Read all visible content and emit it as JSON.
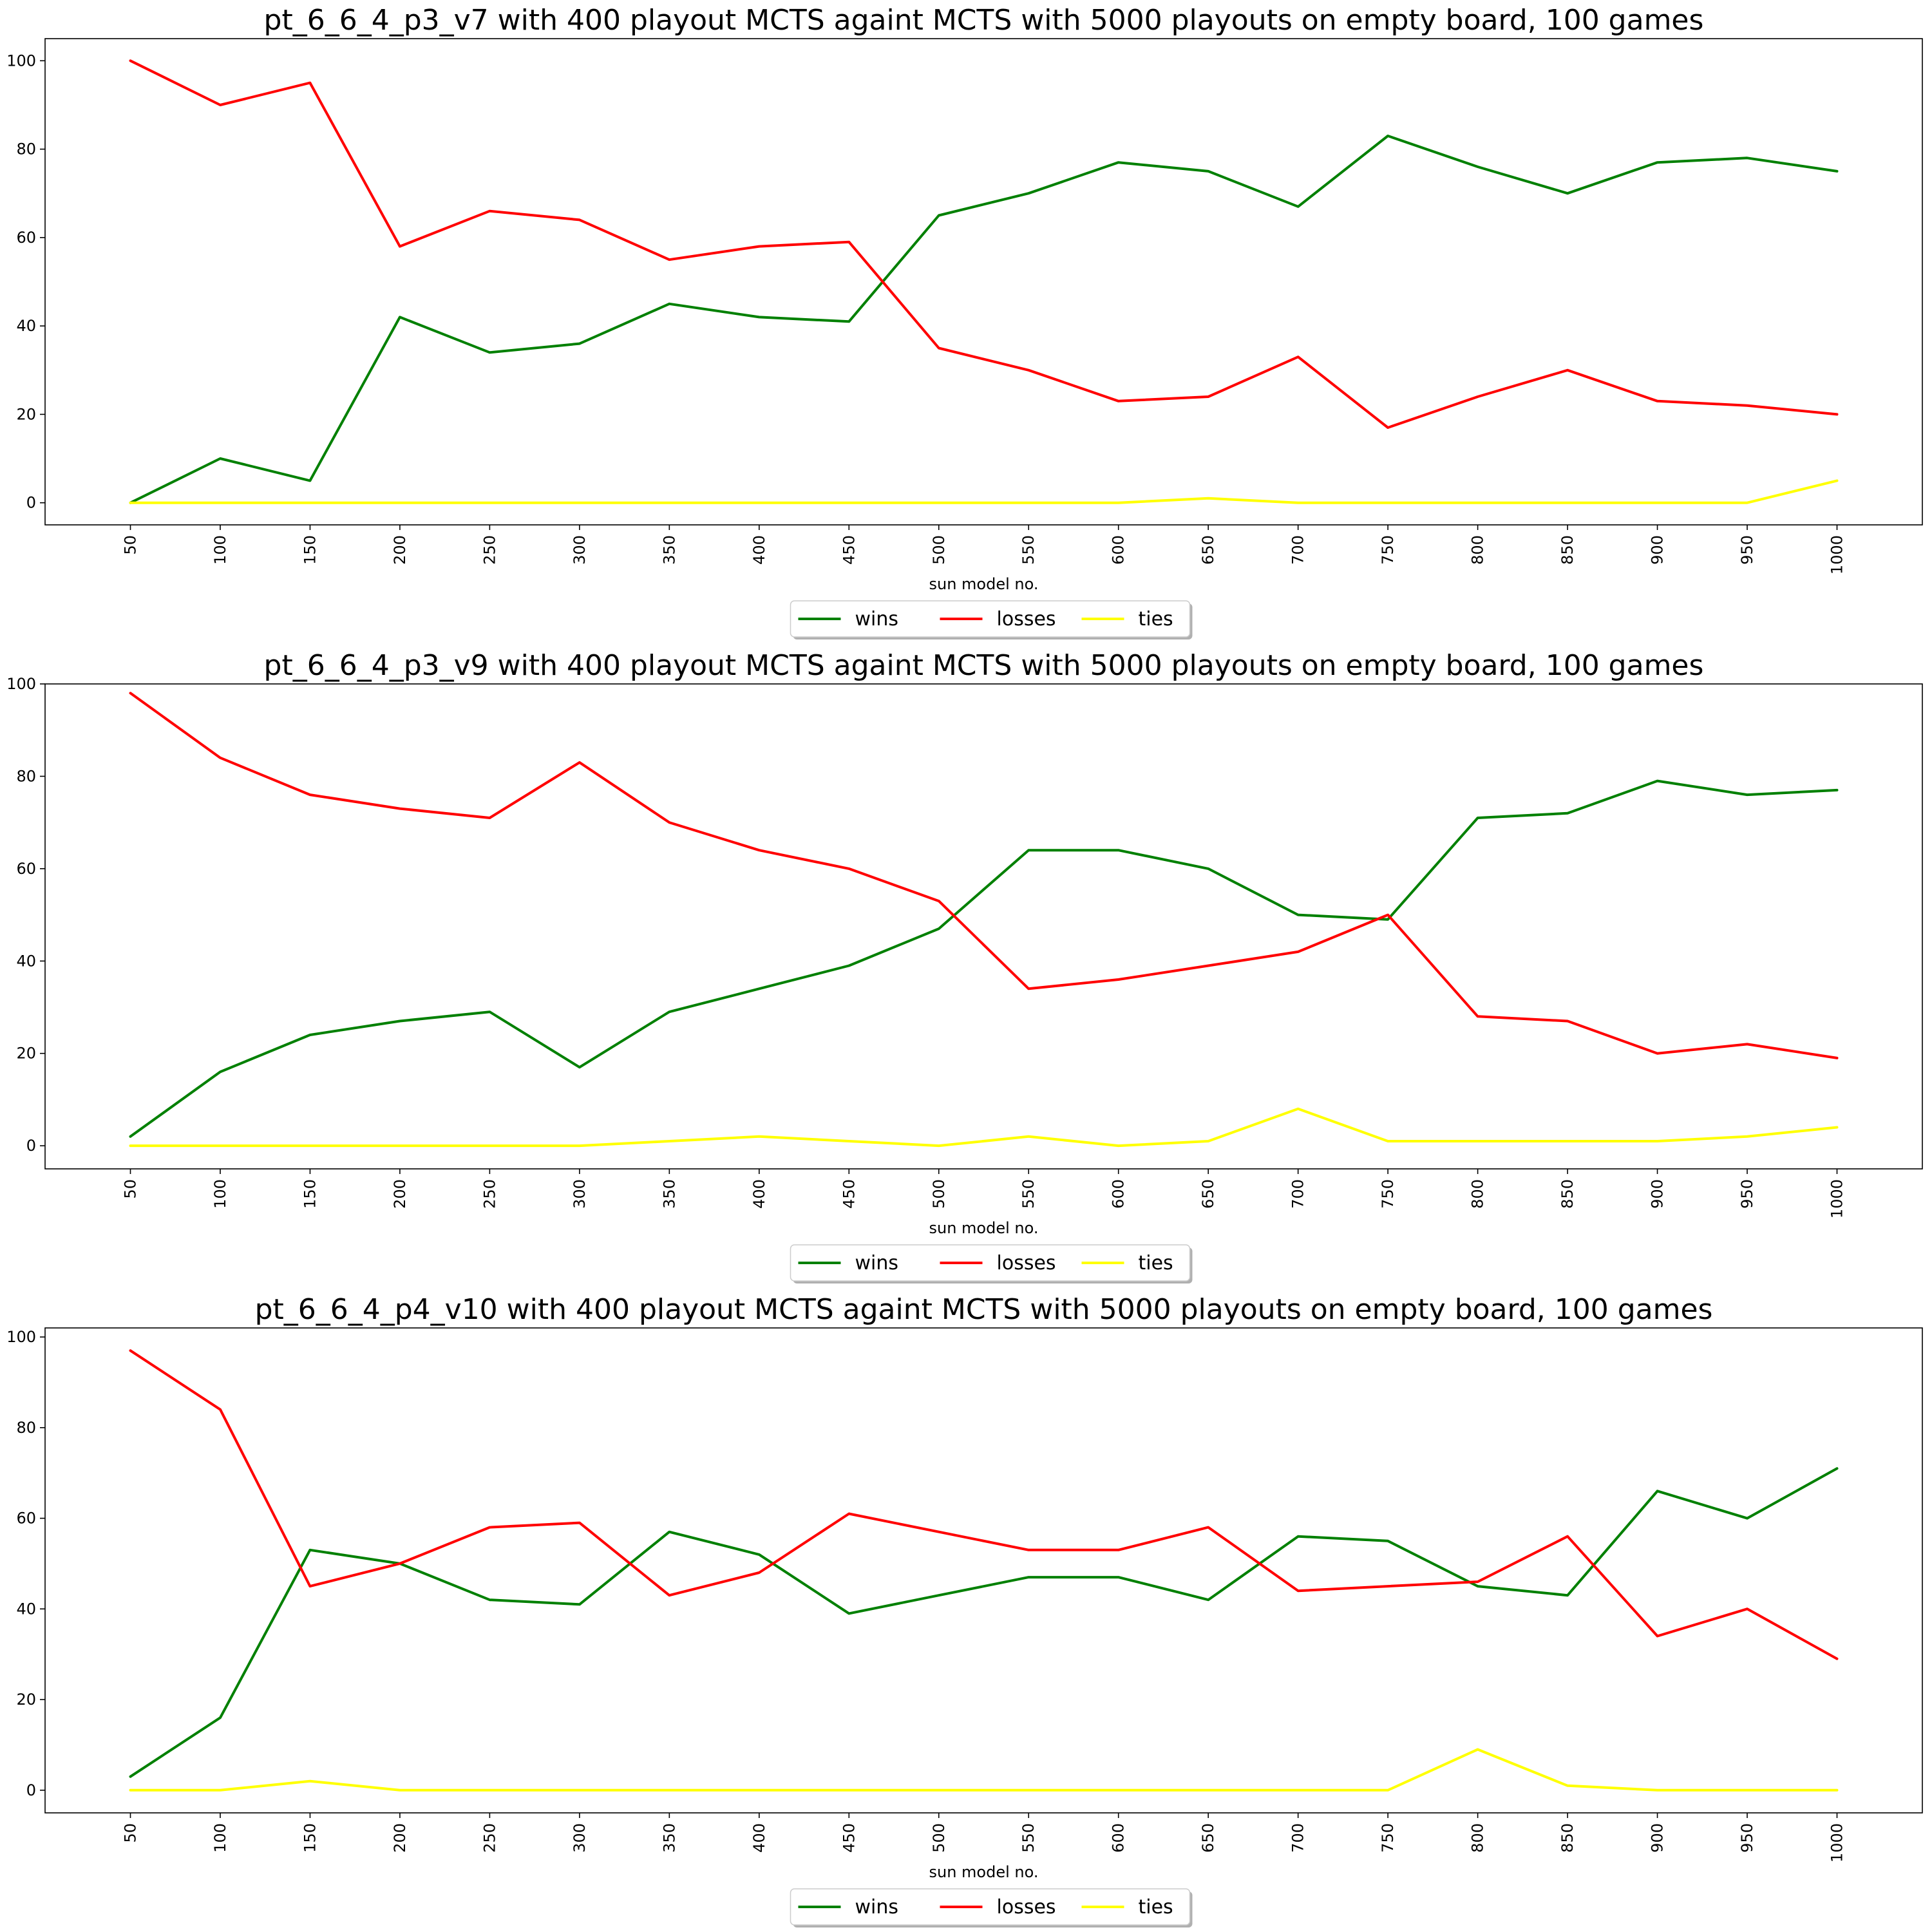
{
  "chart_data": [
    {
      "type": "line",
      "title": "pt_6_6_4_p3_v7 with 400 playout MCTS againt MCTS with 5000 playouts on empty board, 100 games",
      "xlabel": "sun model no.",
      "ylabel": "",
      "x": [
        50,
        100,
        150,
        200,
        250,
        300,
        350,
        400,
        450,
        500,
        550,
        600,
        650,
        700,
        750,
        800,
        850,
        900,
        950,
        1000
      ],
      "ylim": [
        -5,
        105
      ],
      "yticks": [
        0,
        20,
        40,
        60,
        80,
        100
      ],
      "grid": false,
      "legend_placement": "bottom-center",
      "series": [
        {
          "name": "wins",
          "color": "#008000",
          "values": [
            0,
            10,
            5,
            42,
            34,
            36,
            45,
            42,
            41,
            65,
            70,
            77,
            75,
            67,
            83,
            76,
            70,
            77,
            78,
            75
          ]
        },
        {
          "name": "losses",
          "color": "#ff0000",
          "values": [
            100,
            90,
            95,
            58,
            66,
            64,
            55,
            58,
            59,
            35,
            30,
            23,
            24,
            33,
            17,
            24,
            30,
            23,
            22,
            20
          ]
        },
        {
          "name": "ties",
          "color": "#ffff00",
          "values": [
            0,
            0,
            0,
            0,
            0,
            0,
            0,
            0,
            0,
            0,
            0,
            0,
            1,
            0,
            0,
            0,
            0,
            0,
            0,
            5
          ]
        }
      ]
    },
    {
      "type": "line",
      "title": "pt_6_6_4_p3_v9 with 400 playout MCTS againt MCTS with 5000 playouts on empty board, 100 games",
      "xlabel": "sun model no.",
      "ylabel": "",
      "x": [
        50,
        100,
        150,
        200,
        250,
        300,
        350,
        400,
        450,
        500,
        550,
        600,
        650,
        700,
        750,
        800,
        850,
        900,
        950,
        1000
      ],
      "ylim": [
        -5,
        100
      ],
      "yticks": [
        0,
        20,
        40,
        60,
        80,
        100
      ],
      "grid": false,
      "legend_placement": "bottom-center",
      "series": [
        {
          "name": "wins",
          "color": "#008000",
          "values": [
            2,
            16,
            24,
            27,
            29,
            17,
            29,
            34,
            39,
            47,
            64,
            64,
            60,
            50,
            49,
            71,
            72,
            79,
            76,
            77
          ]
        },
        {
          "name": "losses",
          "color": "#ff0000",
          "values": [
            98,
            84,
            76,
            73,
            71,
            83,
            70,
            64,
            60,
            53,
            34,
            36,
            39,
            42,
            50,
            28,
            27,
            20,
            22,
            19
          ]
        },
        {
          "name": "ties",
          "color": "#ffff00",
          "values": [
            0,
            0,
            0,
            0,
            0,
            0,
            1,
            2,
            1,
            0,
            2,
            0,
            1,
            8,
            1,
            1,
            1,
            1,
            2,
            4
          ]
        }
      ]
    },
    {
      "type": "line",
      "title": "pt_6_6_4_p4_v10 with 400 playout MCTS againt MCTS with 5000 playouts on empty board, 100 games",
      "xlabel": "sun model no.",
      "ylabel": "",
      "x": [
        50,
        100,
        150,
        200,
        250,
        300,
        350,
        400,
        450,
        500,
        550,
        600,
        650,
        700,
        750,
        800,
        850,
        900,
        950,
        1000
      ],
      "ylim": [
        -5,
        102
      ],
      "yticks": [
        0,
        20,
        40,
        60,
        80,
        100
      ],
      "grid": false,
      "legend_placement": "bottom-center",
      "series": [
        {
          "name": "wins",
          "color": "#008000",
          "values": [
            3,
            16,
            53,
            50,
            42,
            41,
            57,
            52,
            39,
            43,
            47,
            47,
            42,
            56,
            55,
            45,
            43,
            66,
            60,
            71
          ]
        },
        {
          "name": "losses",
          "color": "#ff0000",
          "values": [
            97,
            84,
            45,
            50,
            58,
            59,
            43,
            48,
            61,
            57,
            53,
            53,
            58,
            44,
            45,
            46,
            56,
            34,
            40,
            29
          ]
        },
        {
          "name": "ties",
          "color": "#ffff00",
          "values": [
            0,
            0,
            2,
            0,
            0,
            0,
            0,
            0,
            0,
            0,
            0,
            0,
            0,
            0,
            0,
            9,
            1,
            0,
            0,
            0
          ]
        }
      ]
    }
  ]
}
